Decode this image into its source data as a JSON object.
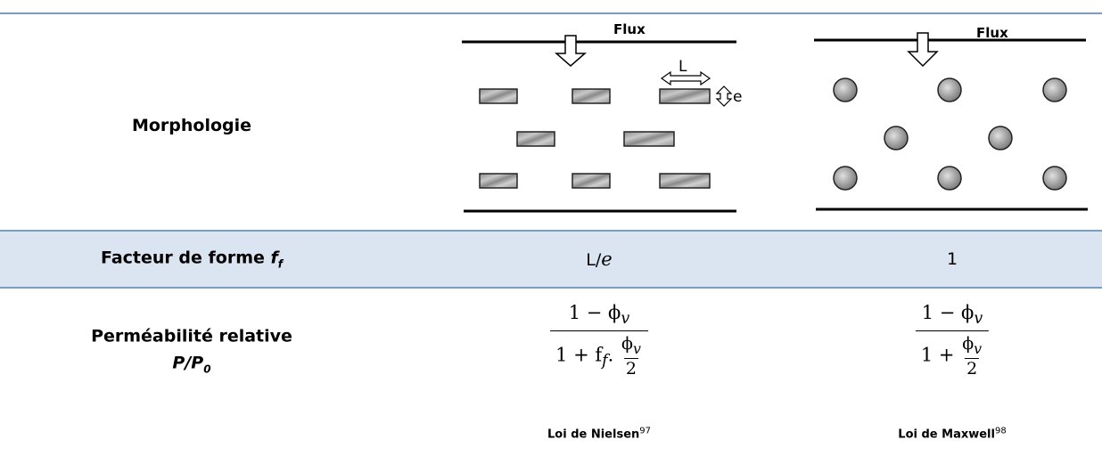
{
  "morphology": {
    "label": "Morphologie",
    "nielsen_diagram": {
      "flux": "Flux",
      "length": "L",
      "thickness": "e"
    },
    "maxwell_diagram": {
      "flux": "Flux"
    }
  },
  "shape_factor": {
    "label": "Facteur de forme",
    "symbol": "f",
    "symbol_sub": "f",
    "nielsen": "L/",
    "nielsen_italic": "e",
    "maxwell": "1"
  },
  "permeability": {
    "label": "Perméabilité relative",
    "ratio": "P/P",
    "ratio_sub": "0",
    "nielsen": {
      "numerator": "1 − ϕ",
      "numerator_sub": "v",
      "denominator": "1 + f",
      "denominator_sub": "f",
      "dot": ".",
      "inner_numerator": "ϕ",
      "inner_numerator_sub": "v",
      "inner_denominator": "2",
      "caption": "Loi de Nielsen",
      "caption_ref": "97"
    },
    "maxwell": {
      "numerator": "1 − ϕ",
      "numerator_sub": "v",
      "denominator": "1 +",
      "inner_numerator": "ϕ",
      "inner_numerator_sub": "v",
      "inner_denominator": "2",
      "caption": "Loi de Maxwell",
      "caption_ref": "98"
    }
  }
}
